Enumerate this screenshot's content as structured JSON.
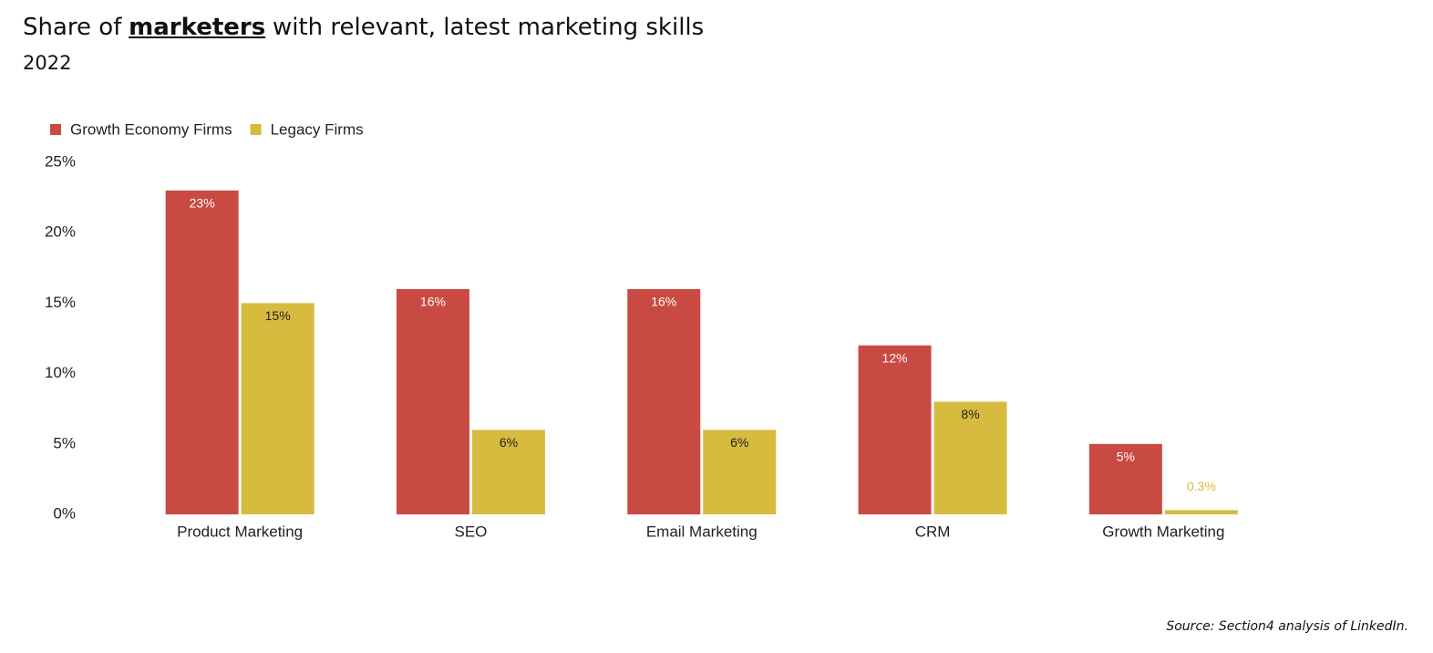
{
  "chart_data": {
    "type": "bar",
    "title": [
      "Share of",
      "marketers",
      "with relevant, latest marketing skills"
    ],
    "subtitle": "2022",
    "source": "Source: Section4 analysis of LinkedIn.",
    "categories": [
      "Product Marketing",
      "SEO",
      "Email Marketing",
      "CRM",
      "Growth Marketing"
    ],
    "series": [
      {
        "name": "Growth Economy Firms",
        "color": "#c94a43",
        "values": [
          23,
          16,
          16,
          12,
          5
        ],
        "value_labels": [
          "23%",
          "16%",
          "16%",
          "12%",
          "5%"
        ]
      },
      {
        "name": "Legacy Firms",
        "color": "#d6bb3e",
        "values": [
          15,
          6,
          6,
          8,
          0.3
        ],
        "value_labels": [
          "15%",
          "6%",
          "6%",
          "8%",
          "0.3%"
        ]
      }
    ],
    "ylim": [
      0,
      25
    ],
    "yticks": [
      {
        "value": 0,
        "label": "0%"
      },
      {
        "value": 5,
        "label": "5%"
      },
      {
        "value": 10,
        "label": "10%"
      },
      {
        "value": 15,
        "label": "15%"
      },
      {
        "value": 20,
        "label": "20%"
      },
      {
        "value": 25,
        "label": "25%"
      }
    ],
    "grid": false,
    "legend": "top-left"
  }
}
